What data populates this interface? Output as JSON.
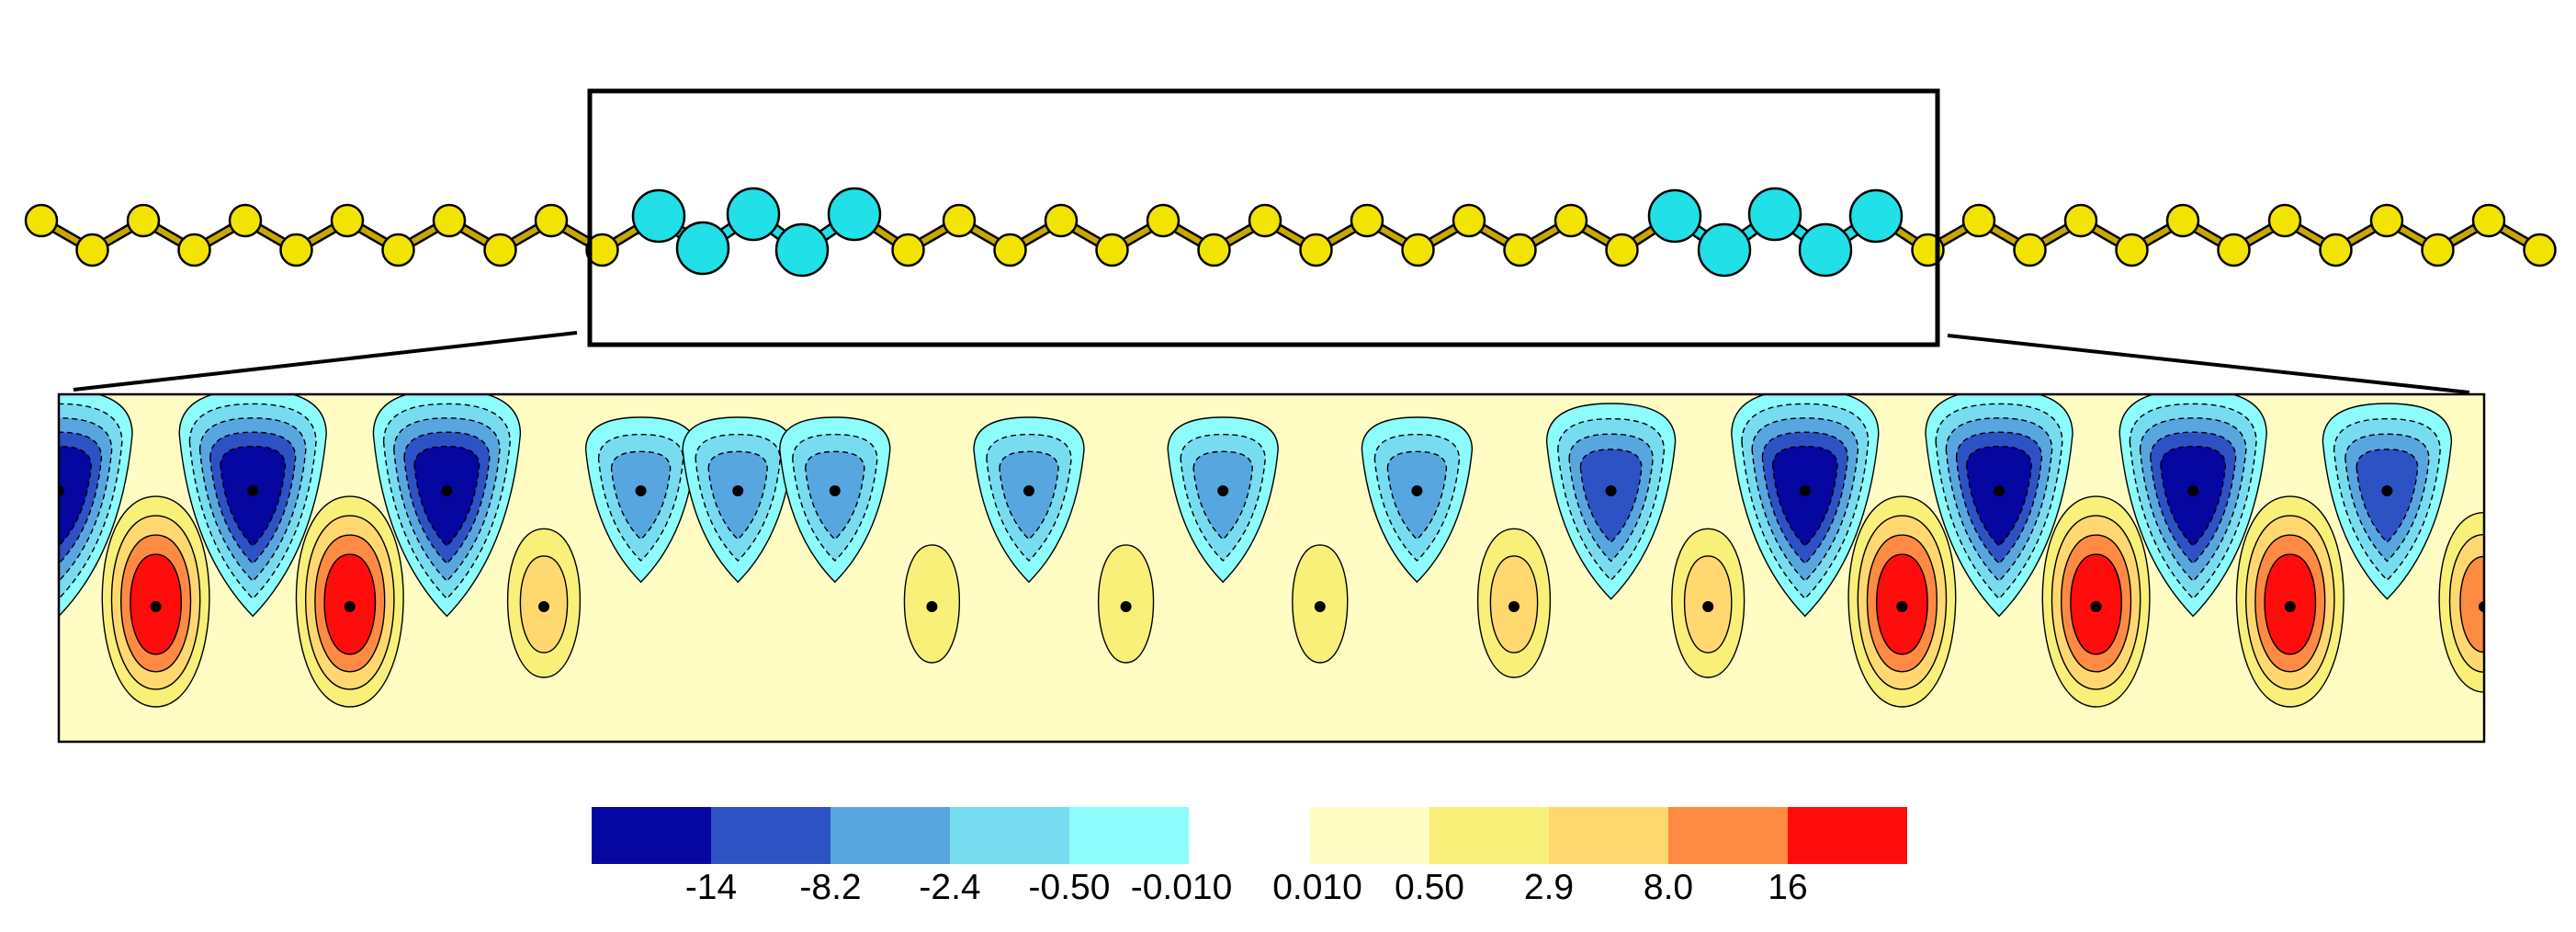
{
  "figure": {
    "description_type": "atomic chain with zoomed contour map of charge density difference",
    "colors": {
      "sulfur_atom": "#f2e400",
      "bond": "#c8a800",
      "dopant_atom": "#22e0e8",
      "frame": "#000000",
      "atom_marker": "#000000"
    }
  },
  "colorbar": {
    "swatches": [
      "#0606a0",
      "#2d52c4",
      "#58a6e0",
      "#78dcf0",
      "#8cfcfc",
      "#ffffff",
      "#fffcc4",
      "#f8f078",
      "#ffd870",
      "#ff8a42",
      "#ff0c0c"
    ],
    "tick_labels": [
      "-14",
      "-8.2",
      "-2.4",
      "-0.50",
      "-0.010",
      "0.010",
      "0.50",
      "2.9",
      "8.0",
      "16"
    ]
  },
  "contour_map": {
    "background": "#fffcc4",
    "neg_levels": [
      "#8cfcfc",
      "#78dcf0",
      "#58a6e0",
      "#2d52c4",
      "#0606a0"
    ],
    "pos_levels": [
      "#f8f078",
      "#ffd870",
      "#ff8a42",
      "#ff0c0c"
    ],
    "lobes": [
      {
        "sign": "neg",
        "rank": 5
      },
      {
        "sign": "pos",
        "rank": 4
      },
      {
        "sign": "neg",
        "rank": 5
      },
      {
        "sign": "pos",
        "rank": 4
      },
      {
        "sign": "neg",
        "rank": 5
      },
      {
        "sign": "pos",
        "rank": 2
      },
      {
        "sign": "neg",
        "rank": 3
      },
      {
        "sign": "neg",
        "rank": 3
      },
      {
        "sign": "neg",
        "rank": 3
      },
      {
        "sign": "pos",
        "rank": 1
      },
      {
        "sign": "neg",
        "rank": 3
      },
      {
        "sign": "pos",
        "rank": 1
      },
      {
        "sign": "neg",
        "rank": 3
      },
      {
        "sign": "pos",
        "rank": 1
      },
      {
        "sign": "neg",
        "rank": 3
      },
      {
        "sign": "pos",
        "rank": 2
      },
      {
        "sign": "neg",
        "rank": 4
      },
      {
        "sign": "pos",
        "rank": 2
      },
      {
        "sign": "neg",
        "rank": 5
      },
      {
        "sign": "pos",
        "rank": 4
      },
      {
        "sign": "neg",
        "rank": 5
      },
      {
        "sign": "pos",
        "rank": 4
      },
      {
        "sign": "neg",
        "rank": 5
      },
      {
        "sign": "pos",
        "rank": 4
      },
      {
        "sign": "neg",
        "rank": 4
      },
      {
        "sign": "pos",
        "rank": 3
      }
    ]
  }
}
